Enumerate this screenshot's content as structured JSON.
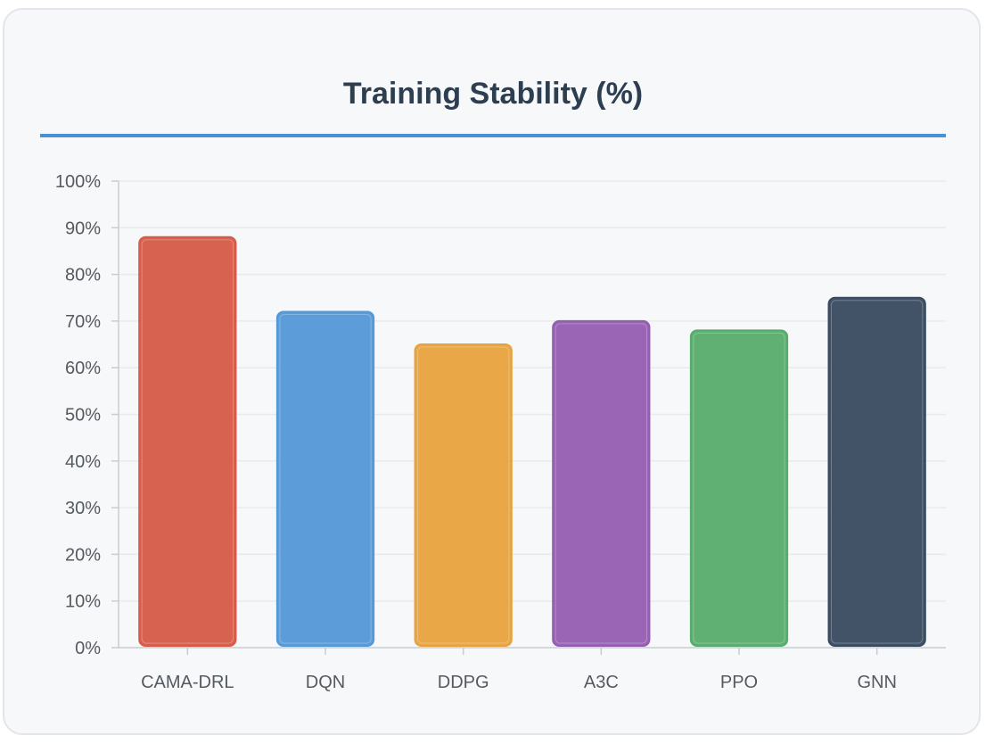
{
  "chart_data": {
    "type": "bar",
    "title": "Training Stability (%)",
    "categories": [
      "CAMA-DRL",
      "DQN",
      "DDPG",
      "A3C",
      "PPO",
      "GNN"
    ],
    "values": [
      88,
      72,
      65,
      70,
      68,
      75
    ],
    "colors": [
      "#d65a47",
      "#5398d7",
      "#e8a23d",
      "#935db0",
      "#56ac6a",
      "#384a60"
    ],
    "ylim": [
      0,
      100
    ],
    "yticks": [
      0,
      10,
      20,
      30,
      40,
      50,
      60,
      70,
      80,
      90,
      100
    ],
    "ytick_suffix": "%",
    "xlabel": "",
    "ylabel": "",
    "grid": true,
    "legend": "none"
  },
  "theme": {
    "accent": "#4a90d9",
    "title_color": "#2c3e50",
    "grid_color": "#e8eaee",
    "axis_color": "#c9ccd2"
  }
}
